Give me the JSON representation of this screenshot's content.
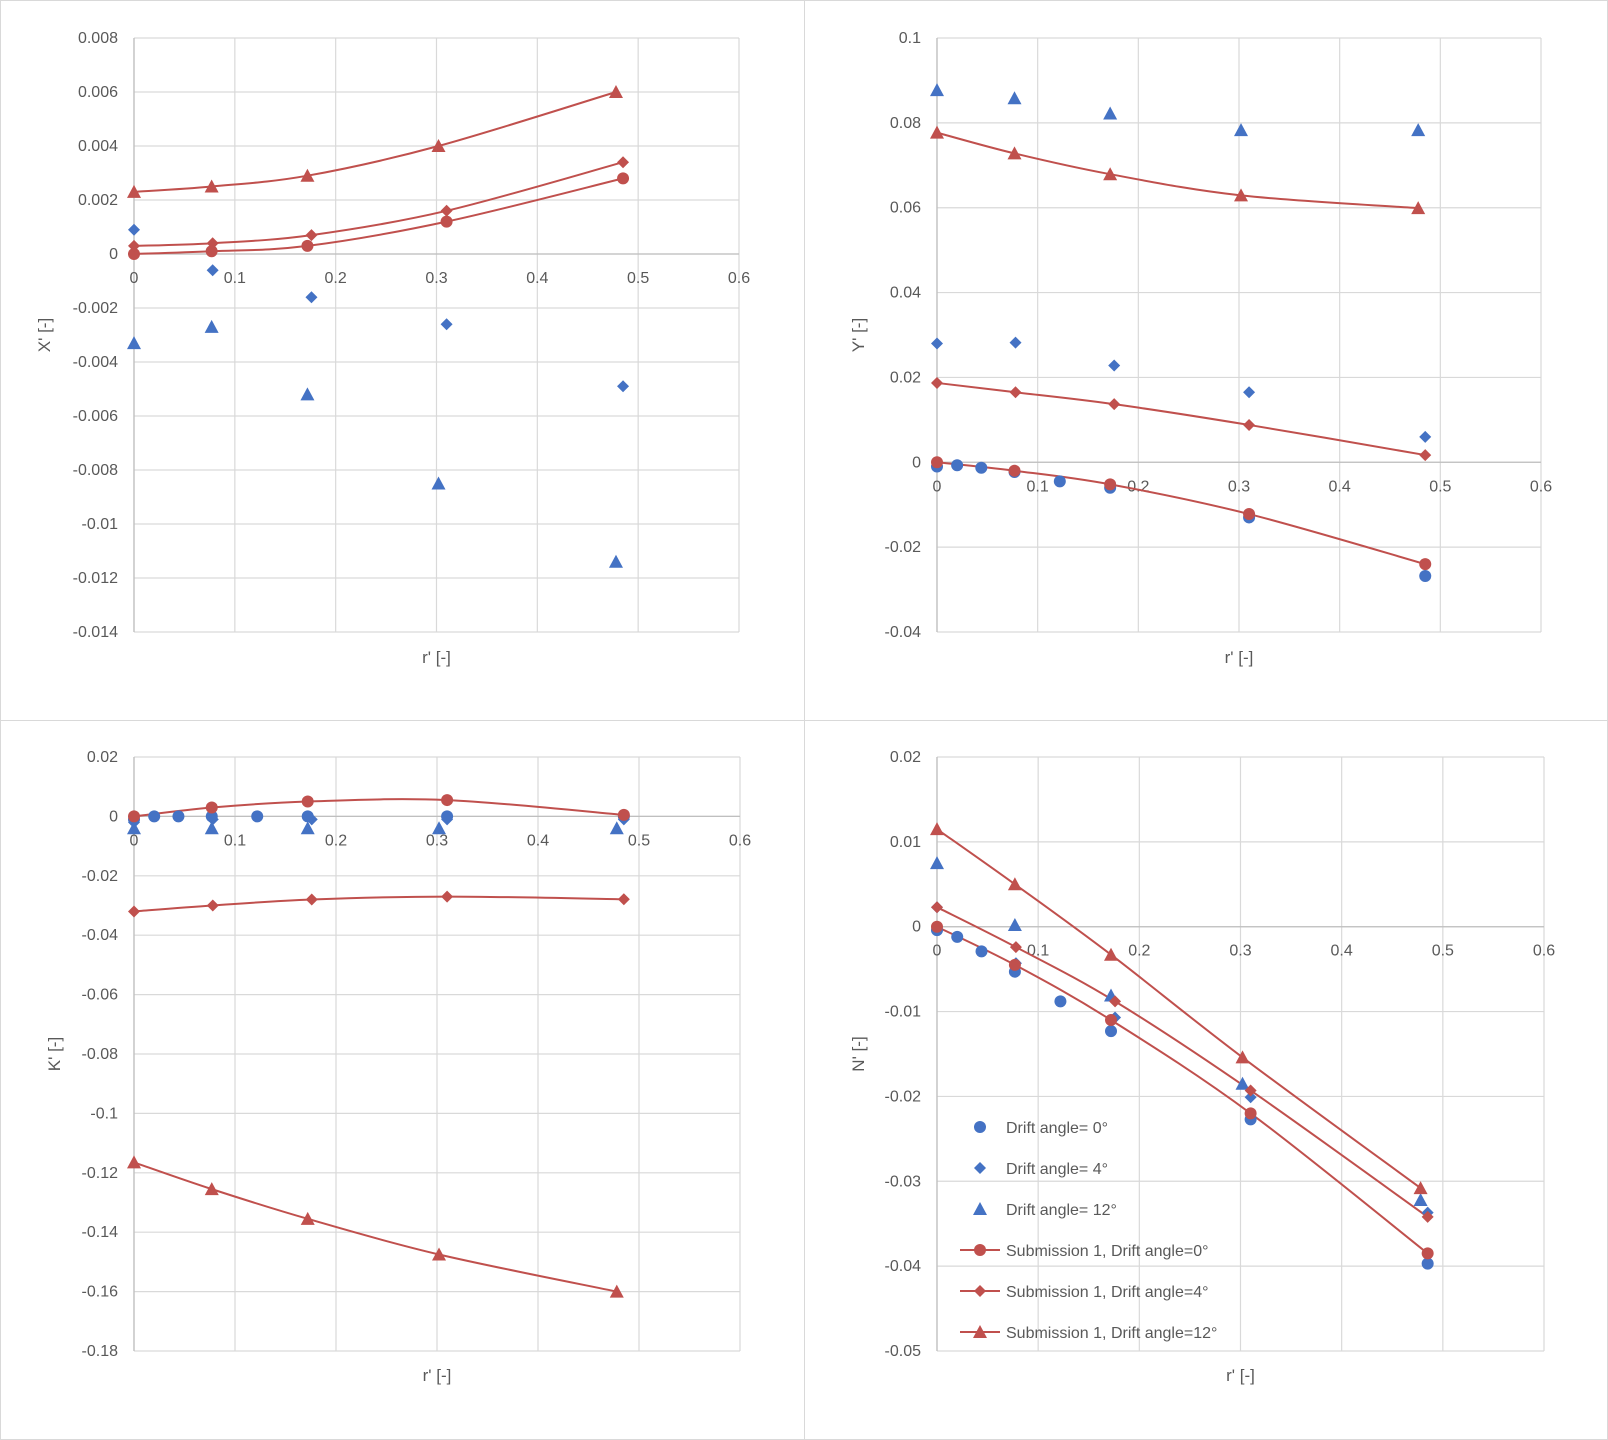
{
  "colors": {
    "measured": "#4472C4",
    "simulated": "#C0504D",
    "grid": "#D9D9D9",
    "axis": "#BFBFBF",
    "text": "#595959",
    "panel_border": "#D9D9D9"
  },
  "legend": {
    "entries": [
      {
        "label": "Drift angle= 0°",
        "marker": "circle",
        "kind": "measured"
      },
      {
        "label": "Drift angle= 4°",
        "marker": "diamond",
        "kind": "measured"
      },
      {
        "label": "Drift angle= 12°",
        "marker": "triangle",
        "kind": "measured"
      },
      {
        "label": "Submission 1, Drift angle=0°",
        "marker": "circle",
        "kind": "simulated"
      },
      {
        "label": "Submission 1, Drift angle=4°",
        "marker": "diamond",
        "kind": "simulated"
      },
      {
        "label": "Submission 1, Drift angle=12°",
        "marker": "triangle",
        "kind": "simulated"
      }
    ]
  },
  "chart_data": [
    {
      "type": "scatter",
      "id": "X",
      "xlabel": "r' [-]",
      "ylabel": "X' [-]",
      "xlim": [
        0,
        0.6
      ],
      "ylim": [
        -0.014,
        0.008
      ],
      "xticks": [
        0,
        0.1,
        0.2,
        0.3,
        0.4,
        0.5,
        0.6
      ],
      "xtick_labels": [
        "0",
        "0.1",
        "0.2",
        "0.3",
        "0.4",
        "0.5",
        "0.6"
      ],
      "yticks": [
        0.008,
        0.006,
        0.004,
        0.002,
        0,
        -0.002,
        -0.004,
        -0.006,
        -0.008,
        -0.01,
        -0.012,
        -0.014
      ],
      "ytick_labels": [
        "0.008",
        "0.006",
        "0.004",
        "0.002",
        "0",
        "-0.002",
        "-0.004",
        "-0.006",
        "-0.008",
        "-0.01",
        "-0.012",
        "-0.014"
      ],
      "series": [
        {
          "name": "Drift angle= 0°",
          "marker": "circle",
          "kind": "measured",
          "line": false,
          "x": [],
          "y": []
        },
        {
          "name": "Drift angle= 4°",
          "marker": "diamond",
          "kind": "measured",
          "line": false,
          "x": [
            0,
            0.078,
            0.176,
            0.31,
            0.485
          ],
          "y": [
            0.0009,
            -0.0006,
            -0.0016,
            -0.0026,
            -0.0049
          ]
        },
        {
          "name": "Drift angle= 12°",
          "marker": "triangle",
          "kind": "measured",
          "line": false,
          "x": [
            0,
            0.077,
            0.172,
            0.302,
            0.478
          ],
          "y": [
            -0.0033,
            -0.0027,
            -0.0052,
            -0.0085,
            -0.0114
          ]
        },
        {
          "name": "Submission 1, Drift angle=0°",
          "marker": "circle",
          "kind": "simulated",
          "line": true,
          "x": [
            0,
            0.077,
            0.172,
            0.31,
            0.485
          ],
          "y": [
            0,
            0.0001,
            0.0003,
            0.0012,
            0.0028
          ]
        },
        {
          "name": "Submission 1, Drift angle=4°",
          "marker": "diamond",
          "kind": "simulated",
          "line": true,
          "x": [
            0,
            0.078,
            0.176,
            0.31,
            0.485
          ],
          "y": [
            0.0003,
            0.0004,
            0.0007,
            0.0016,
            0.0034
          ]
        },
        {
          "name": "Submission 1, Drift angle=12°",
          "marker": "triangle",
          "kind": "simulated",
          "line": true,
          "x": [
            0,
            0.077,
            0.172,
            0.302,
            0.478
          ],
          "y": [
            0.0023,
            0.0025,
            0.0029,
            0.004,
            0.006
          ]
        }
      ]
    },
    {
      "type": "scatter",
      "id": "Y",
      "xlabel": "r' [-]",
      "ylabel": "Y' [-]",
      "xlim": [
        0,
        0.6
      ],
      "ylim": [
        -0.04,
        0.1
      ],
      "xticks": [
        0,
        0.1,
        0.2,
        0.3,
        0.4,
        0.5,
        0.6
      ],
      "xtick_labels": [
        "0",
        "0.1",
        "0.2",
        "0.3",
        "0.4",
        "0.5",
        "0.6"
      ],
      "yticks": [
        0.1,
        0.08,
        0.06,
        0.04,
        0.02,
        0,
        -0.02,
        -0.04
      ],
      "ytick_labels": [
        "0.1",
        "0.08",
        "0.06",
        "0.04",
        "0.02",
        "0",
        "-0.02",
        "-0.04"
      ],
      "series": [
        {
          "name": "Drift angle= 0°",
          "marker": "circle",
          "kind": "measured",
          "line": false,
          "x": [
            0,
            0.02,
            0.044,
            0.077,
            0.122,
            0.172,
            0.31,
            0.485
          ],
          "y": [
            -0.001,
            -0.0007,
            -0.0013,
            -0.0023,
            -0.0045,
            -0.006,
            -0.013,
            -0.0268
          ]
        },
        {
          "name": "Drift angle= 4°",
          "marker": "diamond",
          "kind": "measured",
          "line": false,
          "x": [
            0,
            0.078,
            0.176,
            0.31,
            0.485
          ],
          "y": [
            0.028,
            0.0282,
            0.0228,
            0.0165,
            0.006
          ]
        },
        {
          "name": "Drift angle= 12°",
          "marker": "triangle",
          "kind": "measured",
          "line": false,
          "x": [
            0,
            0.077,
            0.172,
            0.302,
            0.478
          ],
          "y": [
            0.0877,
            0.0858,
            0.0822,
            0.0783,
            0.0783
          ]
        },
        {
          "name": "Submission 1, Drift angle=0°",
          "marker": "circle",
          "kind": "simulated",
          "line": true,
          "x": [
            0,
            0.077,
            0.172,
            0.31,
            0.485
          ],
          "y": [
            0,
            -0.002,
            -0.0052,
            -0.0122,
            -0.024
          ]
        },
        {
          "name": "Submission 1, Drift angle=4°",
          "marker": "diamond",
          "kind": "simulated",
          "line": true,
          "x": [
            0,
            0.078,
            0.176,
            0.31,
            0.485
          ],
          "y": [
            0.0187,
            0.0165,
            0.0137,
            0.0088,
            0.0017
          ]
        },
        {
          "name": "Submission 1, Drift angle=12°",
          "marker": "triangle",
          "kind": "simulated",
          "line": true,
          "x": [
            0,
            0.077,
            0.172,
            0.302,
            0.478
          ],
          "y": [
            0.0777,
            0.0728,
            0.0679,
            0.0629,
            0.0599
          ]
        }
      ]
    },
    {
      "type": "scatter",
      "id": "K",
      "xlabel": "r' [-]",
      "ylabel": "K' [-]",
      "xlim": [
        0,
        0.6
      ],
      "ylim": [
        -0.18,
        0.02
      ],
      "xticks": [
        0,
        0.1,
        0.2,
        0.3,
        0.4,
        0.5,
        0.6
      ],
      "xtick_labels": [
        "0",
        "0.1",
        "0.2",
        "0.3",
        "0.4",
        "0.5",
        "0.6"
      ],
      "yticks": [
        0.02,
        0,
        -0.02,
        -0.04,
        -0.06,
        -0.08,
        -0.1,
        -0.12,
        -0.14,
        -0.16,
        -0.18
      ],
      "ytick_labels": [
        "0.02",
        "0",
        "-0.02",
        "-0.04",
        "-0.06",
        "-0.08",
        "-0.1",
        "-0.12",
        "-0.14",
        "-0.16",
        "-0.18"
      ],
      "series": [
        {
          "name": "Drift angle= 0°",
          "marker": "circle",
          "kind": "measured",
          "line": false,
          "x": [
            0,
            0.02,
            0.044,
            0.077,
            0.122,
            0.172,
            0.31,
            0.485
          ],
          "y": [
            -0.001,
            0,
            0,
            0,
            0,
            0,
            0,
            0
          ]
        },
        {
          "name": "Drift angle= 4°",
          "marker": "diamond",
          "kind": "measured",
          "line": false,
          "x": [
            0,
            0.078,
            0.176,
            0.31,
            0.485
          ],
          "y": [
            -0.002,
            -0.001,
            -0.001,
            -0.001,
            -0.001
          ]
        },
        {
          "name": "Drift angle= 12°",
          "marker": "triangle",
          "kind": "measured",
          "line": false,
          "x": [
            0,
            0.077,
            0.172,
            0.302,
            0.478
          ],
          "y": [
            -0.004,
            -0.004,
            -0.004,
            -0.004,
            -0.004
          ]
        },
        {
          "name": "Submission 1, Drift angle=0°",
          "marker": "circle",
          "kind": "simulated",
          "line": true,
          "x": [
            0,
            0.077,
            0.172,
            0.31,
            0.485
          ],
          "y": [
            0,
            0.003,
            0.005,
            0.0055,
            0.0005
          ]
        },
        {
          "name": "Submission 1, Drift angle=4°",
          "marker": "diamond",
          "kind": "simulated",
          "line": true,
          "x": [
            0,
            0.078,
            0.176,
            0.31,
            0.485
          ],
          "y": [
            -0.032,
            -0.03,
            -0.028,
            -0.027,
            -0.0279
          ]
        },
        {
          "name": "Submission 1, Drift angle=12°",
          "marker": "triangle",
          "kind": "simulated",
          "line": true,
          "x": [
            0,
            0.077,
            0.172,
            0.302,
            0.478
          ],
          "y": [
            -0.1165,
            -0.1255,
            -0.1355,
            -0.1475,
            -0.16
          ]
        }
      ]
    },
    {
      "type": "scatter",
      "id": "N",
      "xlabel": "r' [-]",
      "ylabel": "N' [-]",
      "xlim": [
        0,
        0.6
      ],
      "ylim": [
        -0.05,
        0.02
      ],
      "xticks": [
        0,
        0.1,
        0.2,
        0.3,
        0.4,
        0.5,
        0.6
      ],
      "xtick_labels": [
        "0",
        "0.1",
        "0.2",
        "0.3",
        "0.4",
        "0.5",
        "0.6"
      ],
      "yticks": [
        0.02,
        0.01,
        0,
        -0.01,
        -0.02,
        -0.03,
        -0.04,
        -0.05
      ],
      "ytick_labels": [
        "0.02",
        "0.01",
        "0",
        "-0.01",
        "-0.02",
        "-0.03",
        "-0.04",
        "-0.05"
      ],
      "series": [
        {
          "name": "Drift angle= 0°",
          "marker": "circle",
          "kind": "measured",
          "line": false,
          "x": [
            0,
            0.02,
            0.044,
            0.077,
            0.122,
            0.172,
            0.31,
            0.485
          ],
          "y": [
            -0.0004,
            -0.0012,
            -0.0029,
            -0.0053,
            -0.0088,
            -0.0123,
            -0.0227,
            -0.0397
          ]
        },
        {
          "name": "Drift angle= 4°",
          "marker": "diamond",
          "kind": "measured",
          "line": false,
          "x": [
            0,
            0.078,
            0.176,
            0.31,
            0.485
          ],
          "y": [
            0.0023,
            -0.0043,
            -0.0107,
            -0.0201,
            -0.0337
          ]
        },
        {
          "name": "Drift angle= 12°",
          "marker": "triangle",
          "kind": "measured",
          "line": false,
          "x": [
            0,
            0.077,
            0.172,
            0.302,
            0.478
          ],
          "y": [
            0.0075,
            0.0002,
            -0.0081,
            -0.0185,
            -0.0322
          ]
        },
        {
          "name": "Submission 1, Drift angle=0°",
          "marker": "circle",
          "kind": "simulated",
          "line": true,
          "x": [
            0,
            0.077,
            0.172,
            0.31,
            0.485
          ],
          "y": [
            0,
            -0.0045,
            -0.011,
            -0.022,
            -0.0385
          ]
        },
        {
          "name": "Submission 1, Drift angle=4°",
          "marker": "diamond",
          "kind": "simulated",
          "line": true,
          "x": [
            0,
            0.078,
            0.176,
            0.31,
            0.485
          ],
          "y": [
            0.0023,
            -0.0024,
            -0.0088,
            -0.0193,
            -0.0342
          ]
        },
        {
          "name": "Submission 1, Drift angle=12°",
          "marker": "triangle",
          "kind": "simulated",
          "line": true,
          "x": [
            0,
            0.077,
            0.172,
            0.302,
            0.478
          ],
          "y": [
            0.0115,
            0.005,
            -0.0033,
            -0.0154,
            -0.0308
          ]
        }
      ]
    }
  ]
}
